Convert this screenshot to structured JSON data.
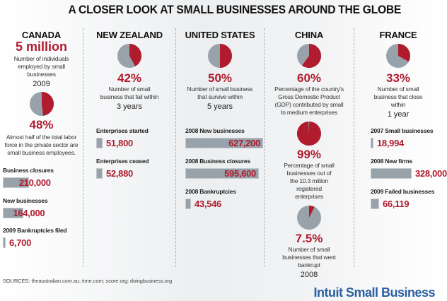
{
  "title": "A CLOSER LOOK AT SMALL BUSINESSES AROUND THE GLOBE",
  "colors": {
    "accent": "#b01c2e",
    "pie_gray": "#98a2aa",
    "bar": "#98a2aa",
    "brand": "#2a5fa3"
  },
  "canada": {
    "name": "CANADA",
    "headline": "5 million",
    "headline_caption": "Number of individuals employed by small businesses",
    "headline_year": "2009",
    "pie_percent": 48,
    "pie_label": "48%",
    "pie_caption": "Almost half of the total labor force in the private sector are small business employees.",
    "stats": [
      {
        "label": "Business closures",
        "value": "210,000",
        "amount": 210000
      },
      {
        "label": "New businesses",
        "value": "164,000",
        "amount": 164000
      },
      {
        "label": "2009 Bankruptcies filed",
        "value": "6,700",
        "amount": 6700
      }
    ]
  },
  "new_zealand": {
    "name": "NEW ZEALAND",
    "pie_percent": 42,
    "pie_label": "42%",
    "pie_caption": "Number of small business that fail within",
    "pie_period": "3 years",
    "stats": [
      {
        "label": "Enterprises started",
        "value": "51,800",
        "amount": 51800
      },
      {
        "label": "Enterprises ceased",
        "value": "52,880",
        "amount": 52880
      }
    ]
  },
  "united_states": {
    "name": "UNITED STATES",
    "pie_percent": 50,
    "pie_label": "50%",
    "pie_caption": "Number of small business that survive within",
    "pie_period": "5 years",
    "stats": [
      {
        "label": "2008 New businesses",
        "value": "627,200",
        "amount": 627200
      },
      {
        "label": "2008 Business closures",
        "value": "595,600",
        "amount": 595600
      },
      {
        "label": "2008 Bankruptcies",
        "value": "43,546",
        "amount": 43546
      }
    ]
  },
  "china": {
    "name": "CHINA",
    "pies": [
      {
        "percent": 60,
        "label": "60%",
        "caption": "Percentage of the country's Gross Domestic Product (GDP) contributed by small to medium enterprises"
      },
      {
        "percent": 99,
        "label": "99%",
        "caption": "Percentage of small businesses out of the 10.3 million registered enterprises"
      },
      {
        "percent": 7.5,
        "label": "7.5%",
        "caption": "Number of small businesses that went bankrupt",
        "year": "2008"
      }
    ]
  },
  "france": {
    "name": "FRANCE",
    "pie_percent": 33,
    "pie_label": "33%",
    "pie_caption": "Number of small business that close within",
    "pie_period": "1 year",
    "stats": [
      {
        "label": "2007 Small businesses",
        "value": "18,994",
        "amount": 18994
      },
      {
        "label": "2008 New firms",
        "value": "328,000",
        "amount": 328000
      },
      {
        "label": "2009 Failed businesses",
        "value": "66,119",
        "amount": 66119
      }
    ]
  },
  "footer": {
    "sources": "SOURCES: theaustralian.com.au; time.com; score.org; doingbusiness.org",
    "brand": "Intuit Small Business"
  }
}
